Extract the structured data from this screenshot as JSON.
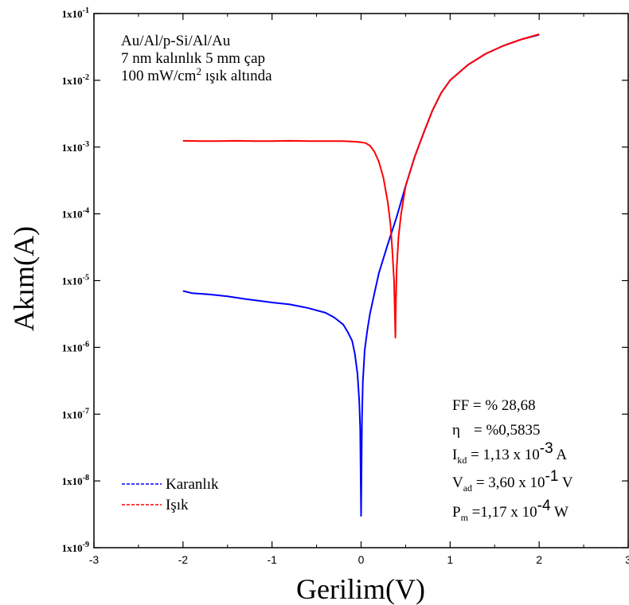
{
  "chart_data": {
    "type": "line",
    "x_scale": "linear",
    "y_scale": "log",
    "xlim": [
      -3,
      3
    ],
    "ylim": [
      1e-09,
      0.1
    ],
    "x_ticks": [
      -3,
      -2,
      -1,
      0,
      1,
      2,
      3
    ],
    "x_tick_labels": [
      "-3",
      "-2",
      "-1",
      "0",
      "1",
      "2",
      "3"
    ],
    "y_ticks": [
      1e-09,
      1e-08,
      1e-07,
      1e-06,
      1e-05,
      0.0001,
      0.001,
      0.01,
      0.1
    ],
    "y_tick_labels": [
      {
        "base": "1x10",
        "exp": "-9"
      },
      {
        "base": "1x10",
        "exp": "-8"
      },
      {
        "base": "1x10",
        "exp": "-7"
      },
      {
        "base": "1x10",
        "exp": "-6"
      },
      {
        "base": "1x10",
        "exp": "-5"
      },
      {
        "base": "1x10",
        "exp": "-4"
      },
      {
        "base": "1x10",
        "exp": "-3"
      },
      {
        "base": "1x10",
        "exp": "-2"
      },
      {
        "base": "1x10",
        "exp": "-1"
      }
    ],
    "xlabel": "Gerilim(V)",
    "ylabel": "Akım(A)",
    "grid": false,
    "legend_position": "bottom-left",
    "sample_lines": [
      "Au/Al/p-Si/Al/Au",
      "7 nm kalınlık 5 mm çap"
    ],
    "sample_line3": {
      "before": "100 mW/cm",
      "sup": "2",
      "after": " ışık altında"
    },
    "params": {
      "ff": "FF = % 28,68",
      "eta_symbol": "η",
      "eta_value": "= %0,5835",
      "ikd": {
        "main": "I",
        "sub": "kd",
        "before_exp": " = 1,13 x 10",
        "exp": "-3",
        "after": " A"
      },
      "vad": {
        "main": "V",
        "sub": "ad",
        "before_exp": " = 3,60 x 10",
        "exp": "-1",
        "after": " V"
      },
      "pm": {
        "main": "P",
        "sub": "m",
        "before_exp": " =1,17 x 10",
        "exp": "-4",
        "after": " W"
      }
    },
    "series": [
      {
        "name": "Karanlık",
        "color": "#0000ff",
        "points": [
          [
            -2.0,
            7e-06
          ],
          [
            -1.9,
            6.5e-06
          ],
          [
            -1.7,
            6.2e-06
          ],
          [
            -1.5,
            5.8e-06
          ],
          [
            -1.3,
            5.3e-06
          ],
          [
            -1.1,
            4.9e-06
          ],
          [
            -1.0,
            4.7e-06
          ],
          [
            -0.8,
            4.4e-06
          ],
          [
            -0.6,
            3.9e-06
          ],
          [
            -0.4,
            3.3e-06
          ],
          [
            -0.3,
            2.8e-06
          ],
          [
            -0.2,
            2.2e-06
          ],
          [
            -0.15,
            1.7e-06
          ],
          [
            -0.1,
            1.25e-06
          ],
          [
            -0.07,
            8e-07
          ],
          [
            -0.04,
            4e-07
          ],
          [
            -0.02,
            1.5e-07
          ],
          [
            -0.01,
            6e-08
          ],
          [
            0.0,
            3e-09
          ],
          [
            0.01,
            8e-08
          ],
          [
            0.02,
            3e-07
          ],
          [
            0.04,
            9e-07
          ],
          [
            0.07,
            1.8e-06
          ],
          [
            0.1,
            3.2e-06
          ],
          [
            0.15,
            6.5e-06
          ],
          [
            0.2,
            1.3e-05
          ],
          [
            0.3,
            3.5e-05
          ],
          [
            0.4,
            9e-05
          ],
          [
            0.5,
            0.00026
          ],
          [
            0.6,
            0.0007
          ],
          [
            0.7,
            0.0016
          ],
          [
            0.8,
            0.0035
          ],
          [
            0.9,
            0.0065
          ],
          [
            1.0,
            0.01
          ],
          [
            1.2,
            0.017
          ],
          [
            1.4,
            0.025
          ],
          [
            1.6,
            0.033
          ],
          [
            1.8,
            0.041
          ],
          [
            2.0,
            0.048
          ]
        ]
      },
      {
        "name": "Işık",
        "color": "#ff0000",
        "points": [
          [
            -2.0,
            0.00124
          ],
          [
            -1.8,
            0.00123
          ],
          [
            -1.6,
            0.00123
          ],
          [
            -1.4,
            0.00124
          ],
          [
            -1.2,
            0.00123
          ],
          [
            -1.0,
            0.00123
          ],
          [
            -0.8,
            0.00124
          ],
          [
            -0.6,
            0.00123
          ],
          [
            -0.4,
            0.00123
          ],
          [
            -0.2,
            0.00123
          ],
          [
            -0.05,
            0.0012
          ],
          [
            0.0,
            0.00118
          ],
          [
            0.05,
            0.00115
          ],
          [
            0.1,
            0.00105
          ],
          [
            0.15,
            0.00085
          ],
          [
            0.2,
            0.0006
          ],
          [
            0.25,
            0.00035
          ],
          [
            0.3,
            0.00015
          ],
          [
            0.33,
            7e-05
          ],
          [
            0.35,
            3e-05
          ],
          [
            0.37,
            1e-05
          ],
          [
            0.38,
            3e-06
          ],
          [
            0.385,
            1.4e-06
          ],
          [
            0.39,
            4e-06
          ],
          [
            0.4,
            1.5e-05
          ],
          [
            0.42,
            4.5e-05
          ],
          [
            0.45,
            0.0001
          ],
          [
            0.5,
            0.00026
          ],
          [
            0.6,
            0.0007
          ],
          [
            0.7,
            0.0016
          ],
          [
            0.8,
            0.0035
          ],
          [
            0.9,
            0.0065
          ],
          [
            1.0,
            0.01
          ],
          [
            1.2,
            0.017
          ],
          [
            1.4,
            0.025
          ],
          [
            1.6,
            0.033
          ],
          [
            1.8,
            0.041
          ],
          [
            2.0,
            0.049
          ]
        ]
      }
    ]
  }
}
